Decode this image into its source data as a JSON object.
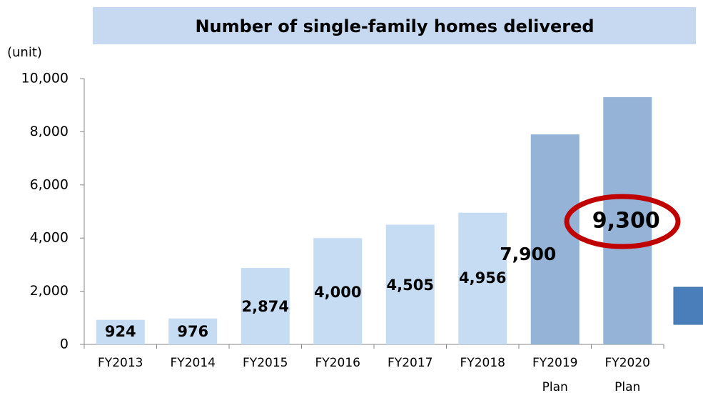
{
  "chart_data": {
    "type": "bar",
    "title": "Number of single-family homes delivered",
    "y_axis_label": "(unit)",
    "categories": [
      "FY2013",
      "FY2014",
      "FY2015",
      "FY2016",
      "FY2017",
      "FY2018",
      "FY2019 Plan",
      "FY2020 Plan"
    ],
    "values": [
      924,
      976,
      2874,
      4000,
      4505,
      4956,
      7900,
      9300
    ],
    "value_labels": [
      "924",
      "976",
      "2,874",
      "4,000",
      "4,505",
      "4,956",
      "7,900",
      "9,300"
    ],
    "colors": [
      "#c6dcf2",
      "#c6dcf2",
      "#c6dcf2",
      "#c6dcf2",
      "#c6dcf2",
      "#c6dcf2",
      "#95b3d7",
      "#95b3d7"
    ],
    "ylim": [
      0,
      10000
    ],
    "yticks": [
      0,
      {
        "value": 2000,
        "label": "2,000"
      },
      {
        "value": 4000,
        "label": "4,000"
      },
      {
        "value": 6000,
        "label": "6,000"
      },
      {
        "value": 8000,
        "label": "8,000"
      },
      {
        "value": 10000,
        "label": "10,000"
      }
    ],
    "grid": false
  }
}
